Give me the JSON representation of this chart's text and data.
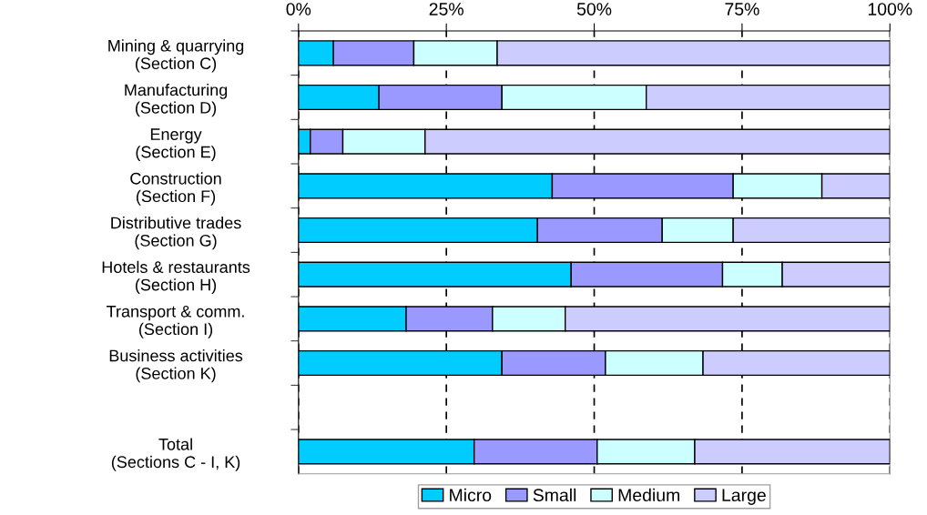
{
  "chart_data": {
    "type": "bar",
    "orientation": "horizontal",
    "stacked": true,
    "categories": [
      "Mining & quarrying\n(Section C)",
      "Manufacturing\n(Section D)",
      "Energy\n(Section E)",
      "Construction\n(Section F)",
      "Distributive trades\n(Section G)",
      "Hotels & restaurants\n(Section H)",
      "Transport & comm.\n(Section I)",
      "Business activities\n(Section K)",
      null,
      "Total\n(Sections C - I, K)"
    ],
    "series": [
      {
        "name": "Micro",
        "color": "#00ccff",
        "values": [
          5.9,
          13.6,
          2.0,
          42.9,
          40.4,
          46.1,
          18.2,
          34.4,
          null,
          29.7
        ]
      },
      {
        "name": "Small",
        "color": "#9999ff",
        "values": [
          13.6,
          20.8,
          5.5,
          30.6,
          21.1,
          25.6,
          14.6,
          17.5,
          null,
          20.8
        ]
      },
      {
        "name": "Medium",
        "color": "#ccffff",
        "values": [
          14.1,
          24.4,
          13.9,
          15.0,
          12.0,
          10.1,
          12.3,
          16.5,
          null,
          16.5
        ]
      },
      {
        "name": "Large",
        "color": "#ccccff",
        "values": [
          66.4,
          41.2,
          78.6,
          11.5,
          26.5,
          18.2,
          54.9,
          31.6,
          null,
          33.0
        ]
      }
    ],
    "xlim": [
      0,
      100
    ],
    "xticks": [
      {
        "value": 0,
        "label": "0%"
      },
      {
        "value": 25,
        "label": "25%"
      },
      {
        "value": 50,
        "label": "50%"
      },
      {
        "value": 75,
        "label": "75%"
      },
      {
        "value": 100,
        "label": "100%"
      }
    ],
    "grid": "x",
    "legend": "bottom"
  }
}
